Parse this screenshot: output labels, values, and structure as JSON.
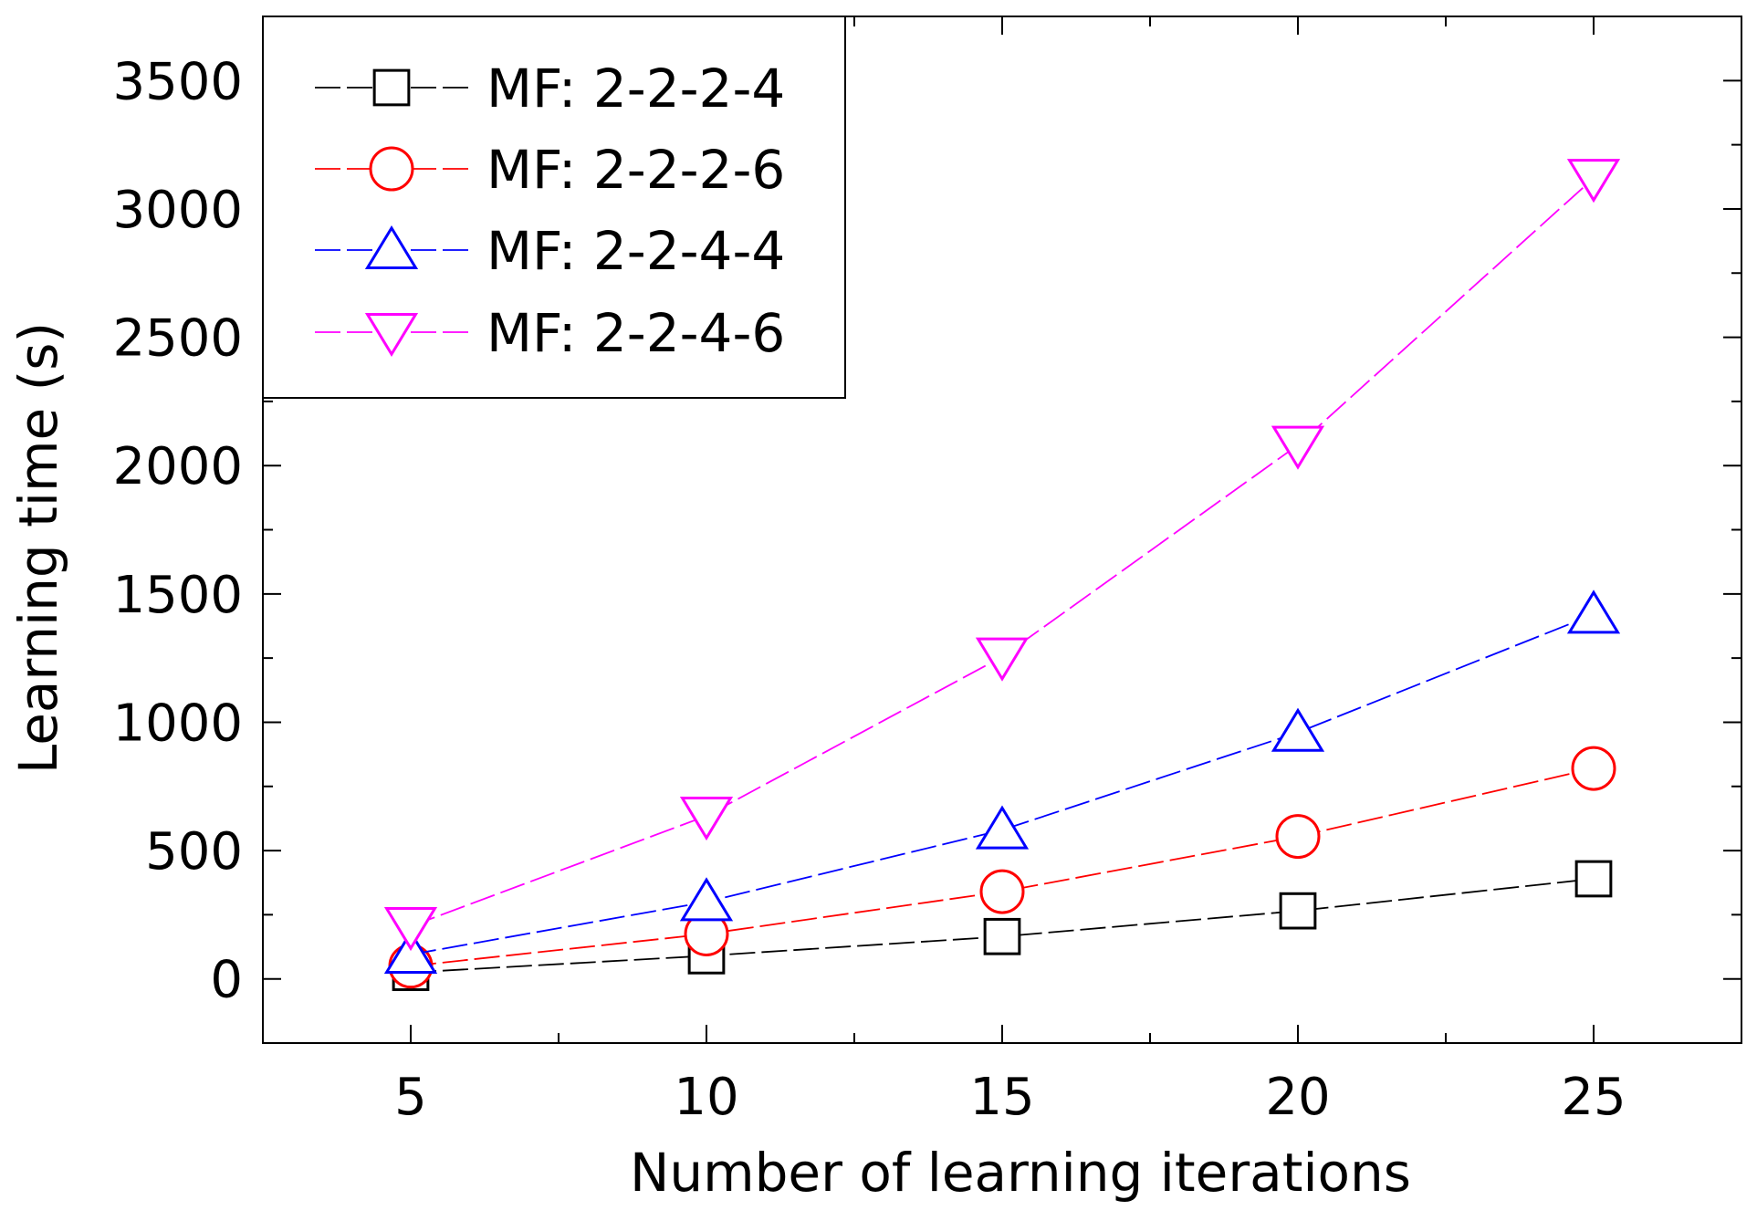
{
  "chart_data": {
    "type": "line",
    "title": "",
    "xlabel": "Number of learning iterations",
    "ylabel": "Learning time (s)",
    "xlim": [
      2.5,
      27.5
    ],
    "ylim": [
      -250,
      3750
    ],
    "x": [
      5,
      10,
      15,
      20,
      25
    ],
    "x_ticks": [
      5,
      10,
      15,
      20,
      25
    ],
    "x_tick_labels": [
      "5",
      "10",
      "15",
      "20",
      "25"
    ],
    "x_minor_ticks": [
      7.5,
      12.5,
      17.5,
      22.5
    ],
    "y_ticks": [
      0,
      500,
      1000,
      1500,
      2000,
      2500,
      3000,
      3500
    ],
    "y_tick_labels": [
      "0",
      "500",
      "1000",
      "1500",
      "2000",
      "2500",
      "3000",
      "3500"
    ],
    "y_minor_ticks": [
      250,
      750,
      1250,
      1750,
      2250,
      2750,
      3250
    ],
    "grid": false,
    "legend_position": "top-left",
    "series": [
      {
        "name": "MF: 2-2-2-4",
        "color": "#000000",
        "marker": "square",
        "values": [
          25,
          90,
          165,
          265,
          390
        ]
      },
      {
        "name": "MF: 2-2-2-6",
        "color": "#ff0000",
        "marker": "circle",
        "values": [
          50,
          175,
          340,
          555,
          820
        ]
      },
      {
        "name": "MF: 2-2-4-4",
        "color": "#0000ff",
        "marker": "triangle-up",
        "values": [
          95,
          300,
          580,
          960,
          1420
        ]
      },
      {
        "name": "MF: 2-2-4-6",
        "color": "#ff00ff",
        "marker": "triangle-down",
        "values": [
          205,
          635,
          1255,
          2080,
          3120
        ]
      }
    ]
  }
}
